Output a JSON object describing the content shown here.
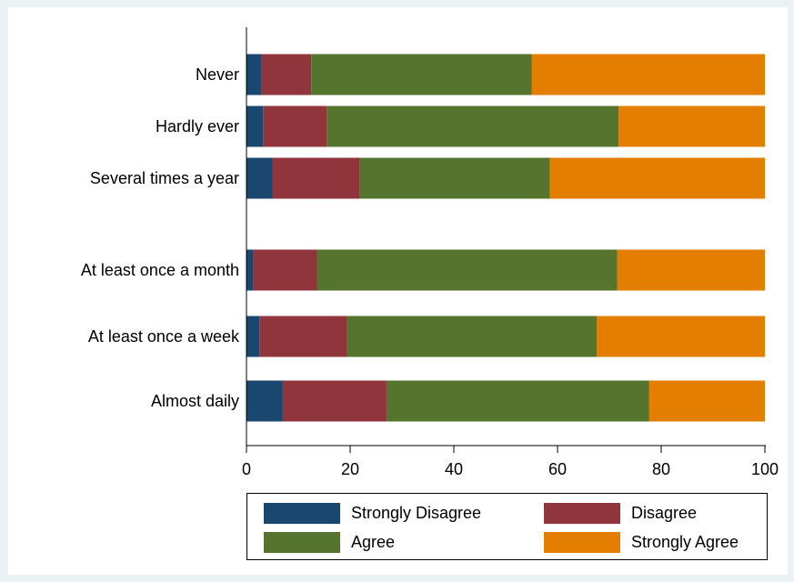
{
  "chart_data": {
    "type": "bar",
    "orientation": "horizontal",
    "stacked": true,
    "categories": [
      "Never",
      "Hardly ever",
      "Several times a year",
      "At least once a month",
      "At least once a week",
      "Almost daily"
    ],
    "series": [
      {
        "name": "Strongly Disagree",
        "color": "#1a476f",
        "values": [
          2.8,
          3.2,
          5.0,
          1.3,
          2.5,
          7.0
        ]
      },
      {
        "name": "Disagree",
        "color": "#90353b",
        "values": [
          9.7,
          12.3,
          16.9,
          12.3,
          16.9,
          20.0
        ]
      },
      {
        "name": "Agree",
        "color": "#55752f",
        "values": [
          42.5,
          56.3,
          36.6,
          57.9,
          48.2,
          50.7
        ]
      },
      {
        "name": "Strongly Agree",
        "color": "#e37e00",
        "values": [
          45.0,
          28.2,
          41.5,
          28.5,
          32.4,
          22.3
        ]
      }
    ],
    "xlim": [
      0,
      100
    ],
    "xticks": [
      "0",
      "20",
      "40",
      "60",
      "80",
      "100"
    ],
    "xlabel": "",
    "ylabel": "",
    "title": "",
    "grid": false,
    "legend_position": "bottom"
  }
}
